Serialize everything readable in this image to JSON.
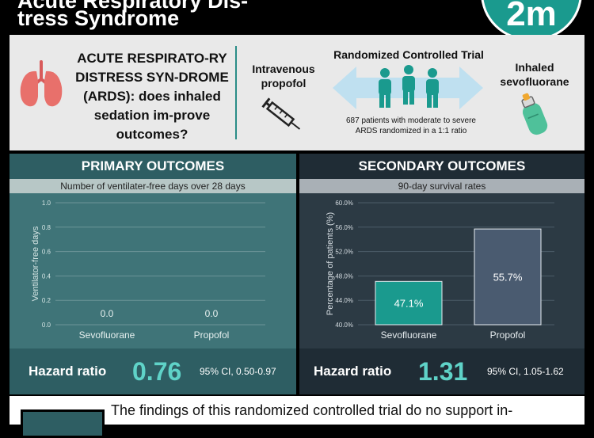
{
  "header": {
    "title_line1": "Acute Respiratory Dis-",
    "title_line2": "tress Syndrome",
    "logo_text": "2m"
  },
  "intro": {
    "question": "ACUTE RESPIRATO-RY DISTRESS SYN-DROME (ARDS): does inhaled sedation im-prove outcomes?",
    "arm_left": "Intravenous propofol",
    "trial_label": "Randomized Controlled Trial",
    "arm_right": "Inhaled sevofluorane",
    "note": "687 patients with moderate to severe ARDS randomized in a 1:1 ratio"
  },
  "primary": {
    "heading": "PRIMARY OUTCOMES",
    "subheading": "Number of ventilater-free days over 28 days",
    "hr_label": "Hazard ratio",
    "hr_value": "0.76",
    "hr_ci": "95% CI, 0.50-0.97"
  },
  "secondary": {
    "heading": "SECONDARY OUTCOMES",
    "subheading": "90-day survival rates",
    "hr_label": "Hazard ratio",
    "hr_value": "1.31",
    "hr_ci": "95% CI, 1.05-1.62"
  },
  "bottom": {
    "text": "The findings of this randomized controlled trial do no support in-"
  },
  "colors": {
    "teal": "#1a9a8e",
    "slate": "#4a5b70",
    "primary_bg": "#3f7478",
    "secondary_bg": "#2c3a44",
    "accent": "#5fd3c8"
  },
  "chart_data": [
    {
      "type": "bar",
      "title": "Number of ventilater-free days over 28 days",
      "ylabel": "Ventilator-free days",
      "categories": [
        "Sevofluorane",
        "Propofol"
      ],
      "values": [
        0.0,
        0.0
      ],
      "value_labels": [
        "0.0",
        "0.0"
      ],
      "ylim": [
        0.0,
        1.0
      ],
      "yticks": [
        0.0,
        0.2,
        0.4,
        0.6,
        0.8,
        1.0
      ],
      "ytick_labels": [
        "0.0",
        "0.2",
        "0.4",
        "0.6",
        "0.8",
        "1.0"
      ],
      "grid": true
    },
    {
      "type": "bar",
      "title": "90-day survival rates",
      "ylabel": "Percentage of patients (%)",
      "categories": [
        "Sevofluorane",
        "Propofol"
      ],
      "values": [
        47.1,
        55.7
      ],
      "value_labels": [
        "47.1%",
        "55.7%"
      ],
      "bar_colors": [
        "#1a9a8e",
        "#4a5b70"
      ],
      "ylim": [
        40.0,
        60.0
      ],
      "yticks": [
        40,
        44,
        48,
        52,
        56,
        60
      ],
      "ytick_labels": [
        "40.0%",
        "44.0%",
        "48.0%",
        "52.0%",
        "56.0%",
        "60.0%"
      ],
      "grid": true
    }
  ]
}
